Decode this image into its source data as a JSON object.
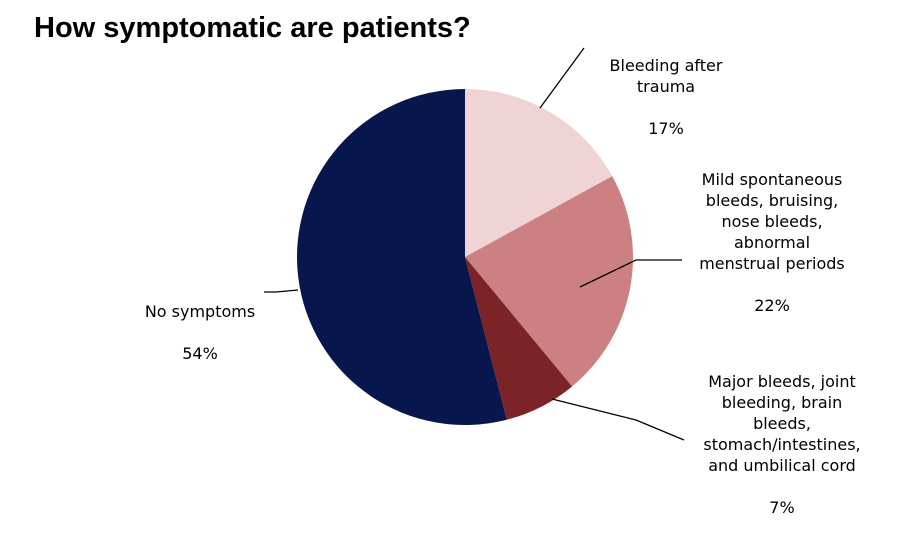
{
  "chart_data": {
    "type": "pie",
    "title": "How symptomatic are patients?",
    "slices": [
      {
        "label": "Bleeding after\ntrauma",
        "value": 17,
        "value_label": "17%",
        "color": "#efd3d5"
      },
      {
        "label": "Mild spontaneous\nbleeds, bruising,\nnose bleeds,\nabnormal\nmenstrual periods",
        "value": 22,
        "value_label": "22%",
        "color": "#cd8082"
      },
      {
        "label": "Major bleeds, joint\nbleeding, brain\nbleeds,\nstomach/intestines,\nand umbilical cord",
        "value": 7,
        "value_label": "7%",
        "color": "#7b2327"
      },
      {
        "label": "No symptoms",
        "value": 54,
        "value_label": "54%",
        "color": "#07174e"
      }
    ],
    "start_angle": "12 o'clock, clockwise",
    "legend": "none (labels with leader lines)"
  }
}
